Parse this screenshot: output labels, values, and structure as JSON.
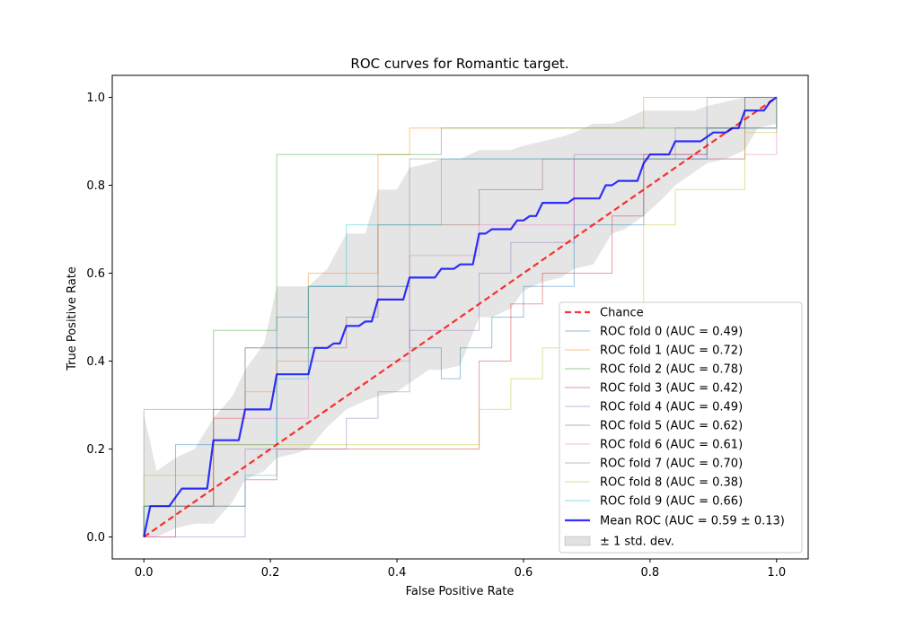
{
  "chart_data": {
    "type": "line",
    "title": "ROC curves for Romantic target.",
    "xlabel": "False Positive Rate",
    "ylabel": "True Positive Rate",
    "xlim": [
      -0.05,
      1.05
    ],
    "ylim": [
      -0.05,
      1.05
    ],
    "xticks": [
      "0.0",
      "0.2",
      "0.4",
      "0.6",
      "0.8",
      "1.0"
    ],
    "yticks": [
      "0.0",
      "0.2",
      "0.4",
      "0.6",
      "0.8",
      "1.0"
    ],
    "grid": false,
    "legend_position": "lower right",
    "chance": {
      "name": "Chance",
      "color": "#ff0000",
      "points": [
        [
          0,
          0
        ],
        [
          1,
          1
        ]
      ]
    },
    "folds": [
      {
        "name": "ROC fold 0 (AUC = 0.49)",
        "color": "#1f77b4",
        "points": [
          [
            0,
            0
          ],
          [
            0,
            0.07
          ],
          [
            0.05,
            0.07
          ],
          [
            0.05,
            0.21
          ],
          [
            0.16,
            0.21
          ],
          [
            0.16,
            0.21
          ],
          [
            0.21,
            0.21
          ],
          [
            0.21,
            0.5
          ],
          [
            0.26,
            0.5
          ],
          [
            0.26,
            0.57
          ],
          [
            0.42,
            0.57
          ],
          [
            0.42,
            0.43
          ],
          [
            0.47,
            0.43
          ],
          [
            0.47,
            0.36
          ],
          [
            0.5,
            0.36
          ],
          [
            0.5,
            0.43
          ],
          [
            0.53,
            0.43
          ],
          [
            0.53,
            0.43
          ],
          [
            0.55,
            0.43
          ],
          [
            0.55,
            0.5
          ],
          [
            0.6,
            0.5
          ],
          [
            0.6,
            0.57
          ],
          [
            0.68,
            0.57
          ],
          [
            0.68,
            0.71
          ],
          [
            0.79,
            0.71
          ],
          [
            0.79,
            0.86
          ],
          [
            0.89,
            0.86
          ],
          [
            0.89,
            0.93
          ],
          [
            1,
            0.93
          ],
          [
            1,
            1
          ]
        ]
      },
      {
        "name": "ROC fold 1 (AUC = 0.72)",
        "color": "#ff7f0e",
        "points": [
          [
            0,
            0
          ],
          [
            0,
            0.07
          ],
          [
            0.11,
            0.07
          ],
          [
            0.11,
            0.27
          ],
          [
            0.16,
            0.27
          ],
          [
            0.16,
            0.33
          ],
          [
            0.21,
            0.33
          ],
          [
            0.21,
            0.4
          ],
          [
            0.26,
            0.4
          ],
          [
            0.26,
            0.6
          ],
          [
            0.37,
            0.6
          ],
          [
            0.37,
            0.87
          ],
          [
            0.42,
            0.87
          ],
          [
            0.42,
            0.93
          ],
          [
            0.79,
            0.93
          ],
          [
            0.79,
            1
          ],
          [
            1,
            1
          ]
        ]
      },
      {
        "name": "ROC fold 2 (AUC = 0.78)",
        "color": "#2ca02c",
        "points": [
          [
            0,
            0
          ],
          [
            0,
            0.07
          ],
          [
            0.11,
            0.07
          ],
          [
            0.11,
            0.47
          ],
          [
            0.21,
            0.47
          ],
          [
            0.21,
            0.87
          ],
          [
            0.47,
            0.87
          ],
          [
            0.47,
            0.93
          ],
          [
            0.95,
            0.93
          ],
          [
            0.95,
            1
          ],
          [
            1,
            1
          ]
        ]
      },
      {
        "name": "ROC fold 3 (AUC = 0.42)",
        "color": "#d62728",
        "points": [
          [
            0,
            0
          ],
          [
            0.05,
            0
          ],
          [
            0.05,
            0.07
          ],
          [
            0.16,
            0.07
          ],
          [
            0.16,
            0.13
          ],
          [
            0.21,
            0.13
          ],
          [
            0.21,
            0.2
          ],
          [
            0.53,
            0.2
          ],
          [
            0.53,
            0.4
          ],
          [
            0.58,
            0.4
          ],
          [
            0.58,
            0.53
          ],
          [
            0.63,
            0.53
          ],
          [
            0.63,
            0.6
          ],
          [
            0.74,
            0.6
          ],
          [
            0.74,
            0.73
          ],
          [
            0.79,
            0.73
          ],
          [
            0.79,
            0.87
          ],
          [
            0.89,
            0.87
          ],
          [
            0.89,
            0.93
          ],
          [
            1,
            0.93
          ],
          [
            1,
            1
          ]
        ]
      },
      {
        "name": "ROC fold 4 (AUC = 0.49)",
        "color": "#9467bd",
        "points": [
          [
            0,
            0
          ],
          [
            0.16,
            0
          ],
          [
            0.16,
            0.2
          ],
          [
            0.32,
            0.2
          ],
          [
            0.32,
            0.27
          ],
          [
            0.37,
            0.27
          ],
          [
            0.37,
            0.33
          ],
          [
            0.42,
            0.33
          ],
          [
            0.42,
            0.47
          ],
          [
            0.53,
            0.47
          ],
          [
            0.53,
            0.6
          ],
          [
            0.58,
            0.6
          ],
          [
            0.58,
            0.67
          ],
          [
            0.68,
            0.67
          ],
          [
            0.68,
            0.87
          ],
          [
            0.89,
            0.87
          ],
          [
            0.89,
            1
          ],
          [
            1,
            1
          ]
        ]
      },
      {
        "name": "ROC fold 5 (AUC = 0.62)",
        "color": "#8c564b",
        "points": [
          [
            0,
            0
          ],
          [
            0,
            0.07
          ],
          [
            0.11,
            0.07
          ],
          [
            0.11,
            0.29
          ],
          [
            0.16,
            0.29
          ],
          [
            0.16,
            0.43
          ],
          [
            0.32,
            0.43
          ],
          [
            0.32,
            0.5
          ],
          [
            0.37,
            0.5
          ],
          [
            0.37,
            0.71
          ],
          [
            0.53,
            0.71
          ],
          [
            0.53,
            0.79
          ],
          [
            0.63,
            0.79
          ],
          [
            0.63,
            0.86
          ],
          [
            0.95,
            0.86
          ],
          [
            0.95,
            1
          ],
          [
            1,
            1
          ]
        ]
      },
      {
        "name": "ROC fold 6 (AUC = 0.61)",
        "color": "#e377c2",
        "points": [
          [
            0,
            0
          ],
          [
            0.05,
            0
          ],
          [
            0.05,
            0.07
          ],
          [
            0.11,
            0.07
          ],
          [
            0.11,
            0.27
          ],
          [
            0.26,
            0.27
          ],
          [
            0.26,
            0.4
          ],
          [
            0.42,
            0.4
          ],
          [
            0.42,
            0.64
          ],
          [
            0.53,
            0.64
          ],
          [
            0.53,
            0.71
          ],
          [
            0.68,
            0.71
          ],
          [
            0.68,
            0.86
          ],
          [
            0.95,
            0.86
          ],
          [
            0.95,
            0.87
          ],
          [
            1,
            0.87
          ],
          [
            1,
            1
          ]
        ]
      },
      {
        "name": "ROC fold 7 (AUC = 0.70)",
        "color": "#7f7f7f",
        "points": [
          [
            0,
            0
          ],
          [
            0,
            0.29
          ],
          [
            0.16,
            0.29
          ],
          [
            0.16,
            0.43
          ],
          [
            0.26,
            0.43
          ],
          [
            0.26,
            0.57
          ],
          [
            0.42,
            0.57
          ],
          [
            0.42,
            0.86
          ],
          [
            0.84,
            0.86
          ],
          [
            0.84,
            0.93
          ],
          [
            0.95,
            0.93
          ],
          [
            0.95,
            1
          ],
          [
            1,
            1
          ]
        ]
      },
      {
        "name": "ROC fold 8 (AUC = 0.38)",
        "color": "#bcbd22",
        "points": [
          [
            0,
            0
          ],
          [
            0,
            0.14
          ],
          [
            0.11,
            0.14
          ],
          [
            0.11,
            0.21
          ],
          [
            0.53,
            0.21
          ],
          [
            0.53,
            0.29
          ],
          [
            0.58,
            0.29
          ],
          [
            0.58,
            0.36
          ],
          [
            0.63,
            0.36
          ],
          [
            0.63,
            0.43
          ],
          [
            0.79,
            0.43
          ],
          [
            0.79,
            0.71
          ],
          [
            0.84,
            0.71
          ],
          [
            0.84,
            0.79
          ],
          [
            0.95,
            0.79
          ],
          [
            0.95,
            0.92
          ],
          [
            1,
            0.92
          ],
          [
            1,
            1
          ]
        ]
      },
      {
        "name": "ROC fold 9 (AUC = 0.66)",
        "color": "#17becf",
        "points": [
          [
            0,
            0
          ],
          [
            0,
            0.07
          ],
          [
            0.16,
            0.07
          ],
          [
            0.16,
            0.14
          ],
          [
            0.21,
            0.14
          ],
          [
            0.21,
            0.36
          ],
          [
            0.26,
            0.36
          ],
          [
            0.26,
            0.57
          ],
          [
            0.32,
            0.57
          ],
          [
            0.32,
            0.71
          ],
          [
            0.47,
            0.71
          ],
          [
            0.47,
            0.86
          ],
          [
            0.89,
            0.86
          ],
          [
            0.89,
            0.93
          ],
          [
            1,
            0.93
          ],
          [
            1,
            1
          ]
        ]
      }
    ],
    "mean": {
      "name": "Mean ROC (AUC = 0.59 ± 0.13)",
      "color": "#0000ff",
      "points": [
        [
          0,
          0
        ],
        [
          0.01,
          0.07
        ],
        [
          0.04,
          0.07
        ],
        [
          0.05,
          0.09
        ],
        [
          0.06,
          0.11
        ],
        [
          0.1,
          0.11
        ],
        [
          0.11,
          0.22
        ],
        [
          0.15,
          0.22
        ],
        [
          0.16,
          0.29
        ],
        [
          0.2,
          0.29
        ],
        [
          0.21,
          0.37
        ],
        [
          0.26,
          0.37
        ],
        [
          0.27,
          0.43
        ],
        [
          0.29,
          0.43
        ],
        [
          0.3,
          0.44
        ],
        [
          0.31,
          0.44
        ],
        [
          0.32,
          0.48
        ],
        [
          0.34,
          0.48
        ],
        [
          0.35,
          0.49
        ],
        [
          0.36,
          0.49
        ],
        [
          0.37,
          0.54
        ],
        [
          0.41,
          0.54
        ],
        [
          0.42,
          0.59
        ],
        [
          0.46,
          0.59
        ],
        [
          0.47,
          0.61
        ],
        [
          0.49,
          0.61
        ],
        [
          0.5,
          0.62
        ],
        [
          0.52,
          0.62
        ],
        [
          0.53,
          0.69
        ],
        [
          0.54,
          0.69
        ],
        [
          0.55,
          0.7
        ],
        [
          0.58,
          0.7
        ],
        [
          0.59,
          0.72
        ],
        [
          0.6,
          0.72
        ],
        [
          0.61,
          0.73
        ],
        [
          0.62,
          0.73
        ],
        [
          0.63,
          0.76
        ],
        [
          0.67,
          0.76
        ],
        [
          0.68,
          0.77
        ],
        [
          0.72,
          0.77
        ],
        [
          0.73,
          0.8
        ],
        [
          0.74,
          0.8
        ],
        [
          0.75,
          0.81
        ],
        [
          0.78,
          0.81
        ],
        [
          0.79,
          0.85
        ],
        [
          0.8,
          0.87
        ],
        [
          0.83,
          0.87
        ],
        [
          0.84,
          0.9
        ],
        [
          0.88,
          0.9
        ],
        [
          0.89,
          0.91
        ],
        [
          0.9,
          0.92
        ],
        [
          0.92,
          0.92
        ],
        [
          0.93,
          0.93
        ],
        [
          0.94,
          0.93
        ],
        [
          0.95,
          0.97
        ],
        [
          0.97,
          0.97
        ],
        [
          0.98,
          0.97
        ],
        [
          0.99,
          0.99
        ],
        [
          1,
          1
        ]
      ]
    },
    "band": {
      "name": "± 1 std. dev.",
      "color": "#bdbdbd",
      "x": [
        0,
        0.02,
        0.05,
        0.08,
        0.11,
        0.14,
        0.16,
        0.19,
        0.21,
        0.24,
        0.26,
        0.29,
        0.32,
        0.35,
        0.37,
        0.4,
        0.42,
        0.45,
        0.47,
        0.5,
        0.53,
        0.55,
        0.58,
        0.6,
        0.63,
        0.66,
        0.68,
        0.71,
        0.74,
        0.76,
        0.79,
        0.82,
        0.84,
        0.87,
        0.89,
        0.92,
        0.95,
        0.97,
        1
      ],
      "upper": [
        0.28,
        0.15,
        0.18,
        0.2,
        0.27,
        0.32,
        0.38,
        0.44,
        0.57,
        0.57,
        0.57,
        0.61,
        0.69,
        0.69,
        0.79,
        0.79,
        0.84,
        0.85,
        0.86,
        0.86,
        0.88,
        0.88,
        0.88,
        0.89,
        0.9,
        0.91,
        0.92,
        0.94,
        0.94,
        0.95,
        0.97,
        0.97,
        0.97,
        0.97,
        0.98,
        0.99,
        1,
        1,
        1
      ],
      "lower": [
        0,
        0,
        0.02,
        0.03,
        0.03,
        0.08,
        0.13,
        0.15,
        0.18,
        0.19,
        0.2,
        0.25,
        0.29,
        0.31,
        0.32,
        0.33,
        0.35,
        0.38,
        0.38,
        0.39,
        0.5,
        0.5,
        0.52,
        0.56,
        0.58,
        0.59,
        0.61,
        0.62,
        0.69,
        0.7,
        0.73,
        0.77,
        0.8,
        0.83,
        0.85,
        0.86,
        0.88,
        0.93,
        0.94
      ]
    }
  }
}
